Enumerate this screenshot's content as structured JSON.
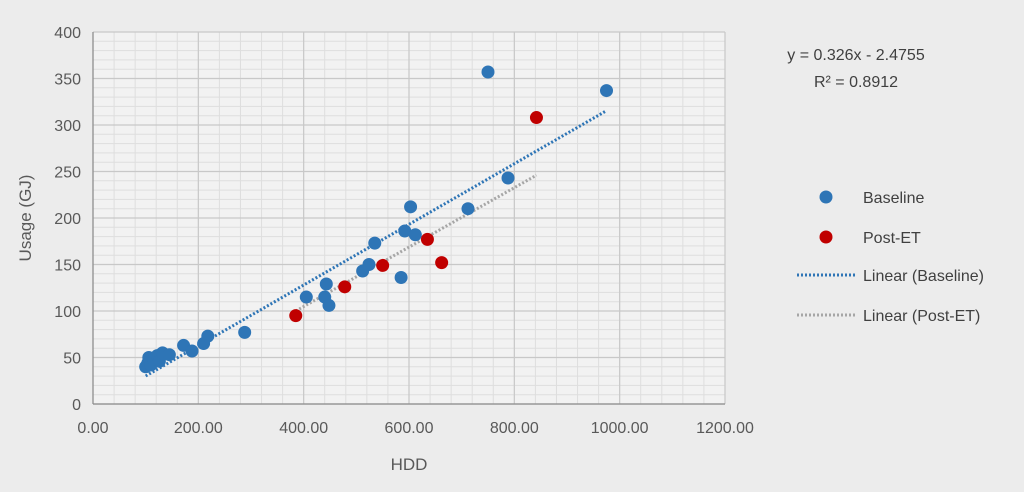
{
  "chart_data": {
    "type": "scatter",
    "xlabel": "HDD",
    "ylabel": "Usage (GJ)",
    "xlim": [
      0,
      1200
    ],
    "ylim": [
      0,
      400
    ],
    "x_ticks": [
      "0.00",
      "200.00",
      "400.00",
      "600.00",
      "800.00",
      "1000.00",
      "1200.00"
    ],
    "y_ticks": [
      "0",
      "50",
      "100",
      "150",
      "200",
      "250",
      "300",
      "350",
      "400"
    ],
    "grid": true,
    "legend_position": "right",
    "annotation": {
      "equation": "y = 0.326x - 2.4755",
      "r_squared": "R² = 0.8912"
    },
    "series": [
      {
        "name": "Baseline",
        "color": "#2e75b6",
        "points": [
          [
            100,
            40
          ],
          [
            104,
            44
          ],
          [
            106,
            50
          ],
          [
            110,
            42
          ],
          [
            115,
            48
          ],
          [
            122,
            52
          ],
          [
            126,
            46
          ],
          [
            132,
            55
          ],
          [
            145,
            53
          ],
          [
            172,
            63
          ],
          [
            188,
            57
          ],
          [
            210,
            65
          ],
          [
            218,
            73
          ],
          [
            288,
            77
          ],
          [
            405,
            115
          ],
          [
            440,
            115
          ],
          [
            443,
            129
          ],
          [
            448,
            106
          ],
          [
            512,
            143
          ],
          [
            524,
            150
          ],
          [
            535,
            173
          ],
          [
            585,
            136
          ],
          [
            592,
            186
          ],
          [
            603,
            212
          ],
          [
            612,
            182
          ],
          [
            712,
            210
          ],
          [
            750,
            357
          ],
          [
            788,
            243
          ],
          [
            975,
            337
          ]
        ]
      },
      {
        "name": "Post-ET",
        "color": "#c00000",
        "points": [
          [
            385,
            95
          ],
          [
            478,
            126
          ],
          [
            550,
            149
          ],
          [
            635,
            177
          ],
          [
            662,
            152
          ],
          [
            842,
            308
          ]
        ]
      }
    ],
    "trendlines": [
      {
        "name": "Linear (Baseline)",
        "color": "#2e75b6",
        "x": [
          100,
          975
        ],
        "y": [
          30.1,
          315.4
        ]
      },
      {
        "name": "Linear (Post-ET)",
        "color": "#a6a6a6",
        "x": [
          385,
          842
        ],
        "y": [
          100,
          246
        ]
      }
    ]
  }
}
